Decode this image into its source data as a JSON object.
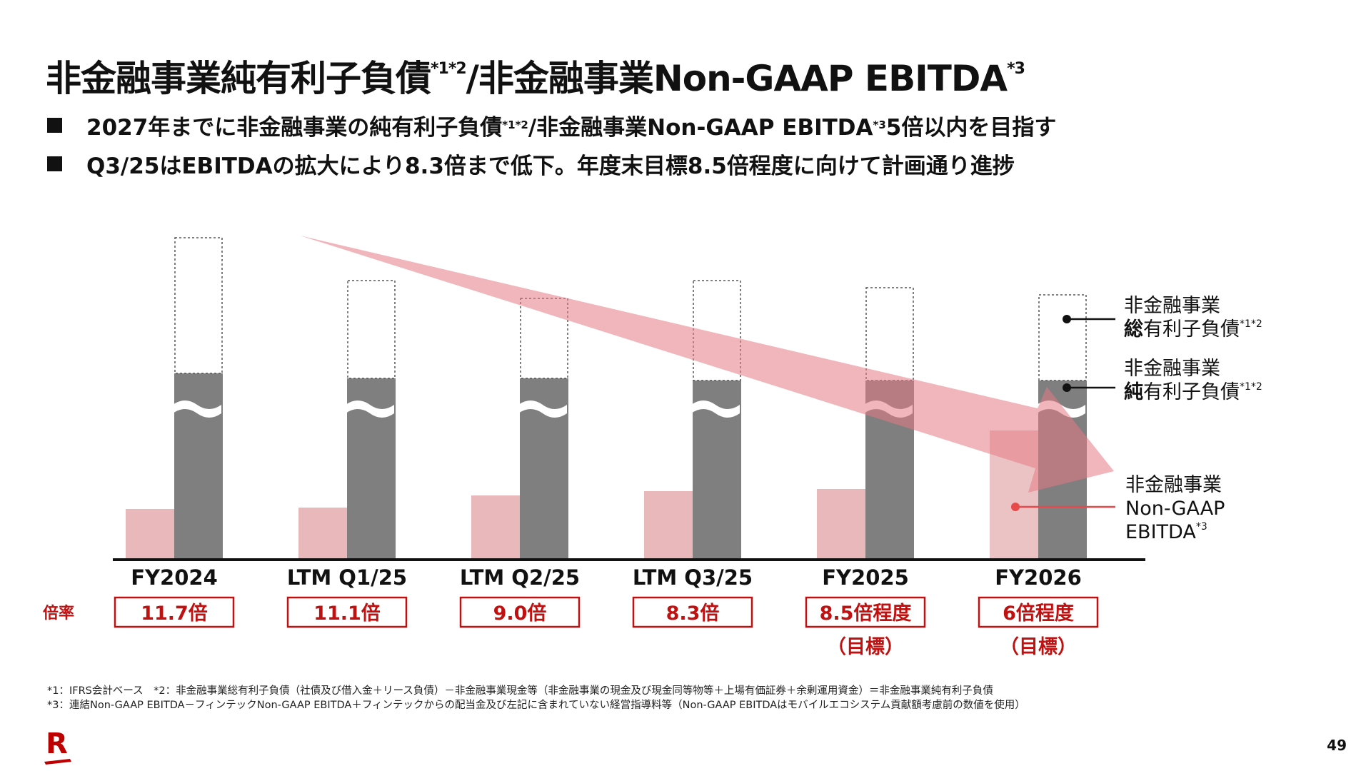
{
  "title": {
    "text": "非金融事業純有利子負債",
    "sup1": "*1*2",
    "text2": "/非金融事業Non-GAAP EBITDA",
    "sup2": "*3"
  },
  "bullets": [
    {
      "before": "2027年までに非金融事業の純有利子負債",
      "sup1": "*1*2",
      "middle": "/非金融事業Non-GAAP EBITDA",
      "sup2": "*3",
      "after": "5倍以内を目指す"
    },
    {
      "text": "Q3/25はEBITDAの拡大により8.3倍まで低下。年度末目標8.5倍程度に向けて計画通り進捗"
    }
  ],
  "chart_data": {
    "type": "bar",
    "categories": [
      "FY2024",
      "LTM Q1/25",
      "LTM Q2/25",
      "LTM Q3/25",
      "FY2025",
      "FY2026"
    ],
    "series": [
      {
        "name": "非金融事業Non-GAAP EBITDA",
        "values": [
          0.7,
          0.72,
          0.89,
          0.95,
          0.98,
          1.8
        ],
        "color": "#e8b8ba"
      },
      {
        "name": "非金融事業純有利子負債",
        "values": [
          2.6,
          2.53,
          2.53,
          2.5,
          2.5,
          2.5
        ],
        "color": "#7f7f7f",
        "axis_break": true
      },
      {
        "name": "非金融事業総有利子負債",
        "values": [
          4.5,
          3.9,
          3.65,
          3.9,
          3.8,
          3.7
        ],
        "style": "dotted-outline"
      }
    ],
    "ratio_label": "倍率",
    "ratios": [
      "11.7倍",
      "11.1倍",
      "9.0倍",
      "8.3倍",
      "8.5倍程度",
      "6倍程度"
    ],
    "targets": [
      "",
      "",
      "",
      "",
      "（目標）",
      "（目標）"
    ],
    "legend": [
      {
        "line1": "非金融事業",
        "bold": "総",
        "rest": "有利子負債",
        "sup": "*1*2"
      },
      {
        "line1": "非金融事業",
        "bold": "純",
        "rest": "有利子負債",
        "sup": "*1*2"
      },
      {
        "line1": "非金融事業",
        "line2": "Non-GAAP",
        "line3": "EBITDA",
        "sup": "*3"
      }
    ],
    "trend": "decreasing",
    "colors": {
      "ebitda": "#e8b8ba",
      "net_debt": "#7f7f7f",
      "accent": "#c01010",
      "trend_arrow": "#e57a85"
    }
  },
  "footnotes": [
    "*1：IFRS会計ベース　*2：非金融事業総有利子負債（社債及び借入金＋リース負債）－非金融事業現金等（非金融事業の現金及び現金同等物等＋上場有価証券＋余剰運用資金）＝非金融事業純有利子負債",
    "*3：連結Non-GAAP EBITDA－フィンテックNon-GAAP EBITDA＋フィンテックからの配当金及び左記に含まれていない経営指導料等（Non-GAAP EBITDAはモバイルエコシステム貢献額考慮前の数値を使用）"
  ],
  "page_number": "49",
  "logo": "Rakuten R logo"
}
